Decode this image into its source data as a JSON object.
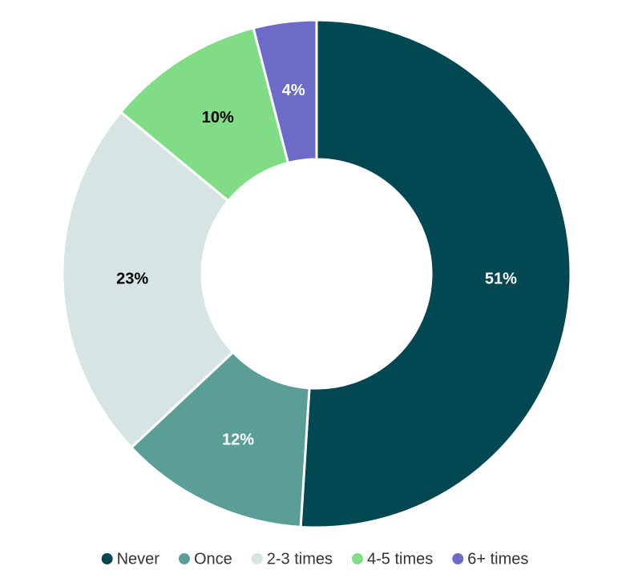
{
  "chart_data": {
    "type": "donut",
    "categories": [
      "Never",
      "Once",
      "2-3 times",
      "4-5 times",
      "6+ times"
    ],
    "values": [
      51,
      12,
      23,
      10,
      4
    ],
    "value_labels": [
      "51%",
      "12%",
      "23%",
      "10%",
      "4%"
    ],
    "colors": [
      "#024751",
      "#5b9e98",
      "#d6e5e3",
      "#80dd86",
      "#6c6cc8"
    ],
    "legend": "bottom"
  }
}
